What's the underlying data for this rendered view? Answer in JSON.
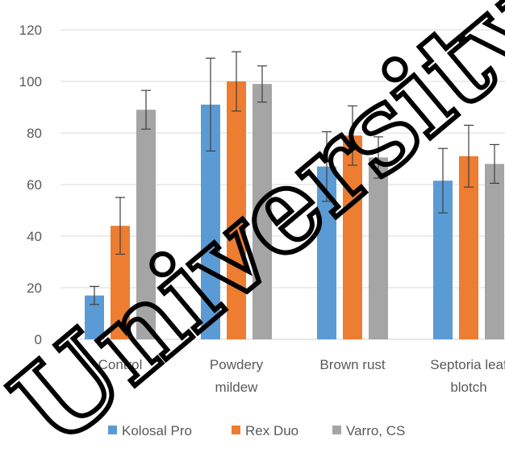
{
  "chart_data": {
    "type": "bar",
    "title": "",
    "xlabel": "",
    "ylabel": "",
    "ylim": [
      0,
      120
    ],
    "yticks": [
      0,
      20,
      40,
      60,
      80,
      100,
      120
    ],
    "categories": [
      [
        "Control"
      ],
      [
        "Powdery",
        "mildew"
      ],
      [
        "Brown rust"
      ],
      [
        "Septoria leaf",
        "blotch"
      ]
    ],
    "series": [
      {
        "name": "Kolosal Pro",
        "color": "#5b9bd5",
        "values": [
          17,
          91,
          67,
          61.5
        ],
        "errors": [
          3.5,
          18,
          13.5,
          12.5
        ]
      },
      {
        "name": "Rex Duo",
        "color": "#ed7d31",
        "values": [
          44,
          100,
          79,
          71
        ],
        "errors": [
          11,
          11.5,
          11.5,
          12
        ]
      },
      {
        "name": "Varro, CS",
        "color": "#a5a5a5",
        "values": [
          89,
          99,
          70.5,
          68
        ],
        "errors": [
          7.5,
          7,
          8,
          7.5
        ]
      }
    ],
    "grid": true,
    "legend_position": "bottom"
  },
  "watermark": "University"
}
